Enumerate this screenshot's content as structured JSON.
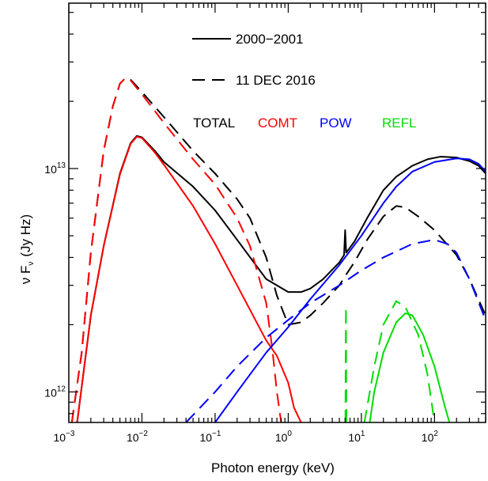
{
  "chart_data": {
    "type": "line",
    "xlabel": "Photon energy (keV)",
    "ylabel_main": "ν F",
    "ylabel_sub": "ν",
    "ylabel_unit": "(Jy Hz)",
    "x_scale": "log",
    "y_scale": "log",
    "xlim": [
      0.001,
      500
    ],
    "ylim": [
      730000000000.0,
      55000000000000.0
    ],
    "x_ticks": [
      {
        "value": 0.001,
        "base": "10",
        "exp": "−3"
      },
      {
        "value": 0.01,
        "base": "10",
        "exp": "−2"
      },
      {
        "value": 0.1,
        "base": "10",
        "exp": "−1"
      },
      {
        "value": 1,
        "base": "10",
        "exp": "0"
      },
      {
        "value": 10,
        "base": "10",
        "exp": "1"
      },
      {
        "value": 100,
        "base": "10",
        "exp": "2"
      }
    ],
    "y_ticks": [
      {
        "value": 1000000000000.0,
        "base": "10",
        "exp": "12"
      },
      {
        "value": 10000000000000.0,
        "base": "10",
        "exp": "13"
      }
    ],
    "grid": false,
    "legend": {
      "placement": "top-center",
      "linestyles": [
        {
          "style": "solid",
          "label": "2000−2001"
        },
        {
          "style": "dashed",
          "label": "11 DEC 2016"
        }
      ],
      "components": [
        {
          "label": "TOTAL",
          "color": "#000000"
        },
        {
          "label": "COMT",
          "color": "#ff0000"
        },
        {
          "label": "POW",
          "color": "#0000ff"
        },
        {
          "label": "REFL",
          "color": "#00dd00"
        }
      ]
    },
    "series": [
      {
        "component": "TOTAL",
        "epoch": "2000−2001",
        "style": "solid",
        "color": "#000000",
        "points": [
          [
            0.0013,
            730000000000.0
          ],
          [
            0.002,
            2200000000000.0
          ],
          [
            0.003,
            4500000000000.0
          ],
          [
            0.005,
            9500000000000.0
          ],
          [
            0.007,
            13000000000000.0
          ],
          [
            0.0085,
            14000000000000.0
          ],
          [
            0.01,
            13800000000000.0
          ],
          [
            0.015,
            12000000000000.0
          ],
          [
            0.02,
            10700000000000.0
          ],
          [
            0.05,
            8300000000000.0
          ],
          [
            0.1,
            6500000000000.0
          ],
          [
            0.2,
            4800000000000.0
          ],
          [
            0.5,
            3200000000000.0
          ],
          [
            1,
            2800000000000.0
          ],
          [
            1.5,
            2800000000000.0
          ],
          [
            2,
            2900000000000.0
          ],
          [
            3,
            3200000000000.0
          ],
          [
            5,
            3800000000000.0
          ],
          [
            5.8,
            4100000000000.0
          ],
          [
            6.0,
            5300000000000.0
          ],
          [
            6.2,
            4200000000000.0
          ],
          [
            8,
            4700000000000.0
          ],
          [
            12,
            6000000000000.0
          ],
          [
            20,
            8000000000000.0
          ],
          [
            30,
            9200000000000.0
          ],
          [
            50,
            10300000000000.0
          ],
          [
            80,
            11000000000000.0
          ],
          [
            120,
            11300000000000.0
          ],
          [
            200,
            11200000000000.0
          ],
          [
            300,
            10800000000000.0
          ],
          [
            400,
            10300000000000.0
          ],
          [
            500,
            9500000000000.0
          ]
        ]
      },
      {
        "component": "TOTAL",
        "epoch": "11 DEC 2016",
        "style": "dashed",
        "color": "#000000",
        "points": [
          [
            0.0011,
            730000000000.0
          ],
          [
            0.0015,
            1500000000000.0
          ],
          [
            0.002,
            4200000000000.0
          ],
          [
            0.003,
            12000000000000.0
          ],
          [
            0.004,
            19000000000000.0
          ],
          [
            0.005,
            24000000000000.0
          ],
          [
            0.006,
            25500000000000.0
          ],
          [
            0.007,
            25000000000000.0
          ],
          [
            0.01,
            22000000000000.0
          ],
          [
            0.02,
            17000000000000.0
          ],
          [
            0.05,
            12000000000000.0
          ],
          [
            0.1,
            9500000000000.0
          ],
          [
            0.2,
            7300000000000.0
          ],
          [
            0.3,
            6000000000000.0
          ],
          [
            0.5,
            4000000000000.0
          ],
          [
            0.7,
            2700000000000.0
          ],
          [
            1,
            2000000000000.0
          ],
          [
            1.5,
            2050000000000.0
          ],
          [
            2,
            2200000000000.0
          ],
          [
            3,
            2500000000000.0
          ],
          [
            5,
            3000000000000.0
          ],
          [
            6,
            3300000000000.0
          ],
          [
            8,
            3800000000000.0
          ],
          [
            12,
            4800000000000.0
          ],
          [
            20,
            6100000000000.0
          ],
          [
            30,
            6800000000000.0
          ],
          [
            40,
            6700000000000.0
          ],
          [
            60,
            6100000000000.0
          ],
          [
            100,
            5300000000000.0
          ],
          [
            200,
            4100000000000.0
          ],
          [
            300,
            3200000000000.0
          ],
          [
            500,
            2200000000000.0
          ]
        ]
      },
      {
        "component": "COMT",
        "epoch": "2000−2001",
        "style": "solid",
        "color": "#ff0000",
        "points": [
          [
            0.0013,
            730000000000.0
          ],
          [
            0.002,
            2200000000000.0
          ],
          [
            0.003,
            4500000000000.0
          ],
          [
            0.005,
            9400000000000.0
          ],
          [
            0.007,
            12900000000000.0
          ],
          [
            0.0085,
            13900000000000.0
          ],
          [
            0.01,
            13700000000000.0
          ],
          [
            0.015,
            11800000000000.0
          ],
          [
            0.02,
            10400000000000.0
          ],
          [
            0.05,
            6800000000000.0
          ],
          [
            0.1,
            4600000000000.0
          ],
          [
            0.2,
            3000000000000.0
          ],
          [
            0.5,
            1700000000000.0
          ],
          [
            0.7,
            1450000000000.0
          ],
          [
            1,
            1100000000000.0
          ],
          [
            1.2,
            850000000000.0
          ],
          [
            1.5,
            730000000000.0
          ]
        ]
      },
      {
        "component": "COMT",
        "epoch": "11 DEC 2016",
        "style": "dashed",
        "color": "#ff0000",
        "points": [
          [
            0.0011,
            730000000000.0
          ],
          [
            0.0015,
            1500000000000.0
          ],
          [
            0.002,
            4200000000000.0
          ],
          [
            0.003,
            12000000000000.0
          ],
          [
            0.004,
            19000000000000.0
          ],
          [
            0.005,
            24000000000000.0
          ],
          [
            0.006,
            25500000000000.0
          ],
          [
            0.007,
            24800000000000.0
          ],
          [
            0.01,
            21500000000000.0
          ],
          [
            0.02,
            16000000000000.0
          ],
          [
            0.05,
            11000000000000.0
          ],
          [
            0.1,
            8500000000000.0
          ],
          [
            0.2,
            6000000000000.0
          ],
          [
            0.3,
            4500000000000.0
          ],
          [
            0.5,
            2500000000000.0
          ],
          [
            0.6,
            1600000000000.0
          ],
          [
            0.7,
            1000000000000.0
          ],
          [
            0.8,
            730000000000.0
          ]
        ]
      },
      {
        "component": "POW",
        "epoch": "2000−2001",
        "style": "solid",
        "color": "#0000ff",
        "points": [
          [
            0.1,
            730000000000.0
          ],
          [
            0.2,
            1000000000000.0
          ],
          [
            0.5,
            1500000000000.0
          ],
          [
            1,
            1950000000000.0
          ],
          [
            2,
            2600000000000.0
          ],
          [
            5,
            3700000000000.0
          ],
          [
            10,
            5000000000000.0
          ],
          [
            20,
            7000000000000.0
          ],
          [
            30,
            8300000000000.0
          ],
          [
            50,
            9700000000000.0
          ],
          [
            100,
            10700000000000.0
          ],
          [
            200,
            11100000000000.0
          ],
          [
            300,
            11000000000000.0
          ],
          [
            400,
            10500000000000.0
          ],
          [
            500,
            9700000000000.0
          ]
        ]
      },
      {
        "component": "POW",
        "epoch": "11 DEC 2016",
        "style": "dashed",
        "color": "#0000ff",
        "points": [
          [
            0.04,
            730000000000.0
          ],
          [
            0.1,
            1000000000000.0
          ],
          [
            0.2,
            1300000000000.0
          ],
          [
            0.5,
            1750000000000.0
          ],
          [
            1,
            2100000000000.0
          ],
          [
            2,
            2500000000000.0
          ],
          [
            5,
            3000000000000.0
          ],
          [
            10,
            3500000000000.0
          ],
          [
            20,
            4000000000000.0
          ],
          [
            50,
            4600000000000.0
          ],
          [
            100,
            4800000000000.0
          ],
          [
            150,
            4600000000000.0
          ],
          [
            200,
            4200000000000.0
          ],
          [
            300,
            3200000000000.0
          ],
          [
            500,
            2100000000000.0
          ]
        ]
      },
      {
        "component": "REFL",
        "epoch": "2000−2001",
        "style": "solid",
        "color": "#00dd00",
        "points": [
          [
            13,
            730000000000.0
          ],
          [
            15,
            1000000000000.0
          ],
          [
            20,
            1500000000000.0
          ],
          [
            30,
            2050000000000.0
          ],
          [
            40,
            2250000000000.0
          ],
          [
            50,
            2200000000000.0
          ],
          [
            70,
            1800000000000.0
          ],
          [
            100,
            1300000000000.0
          ],
          [
            140,
            850000000000.0
          ],
          [
            160,
            730000000000.0
          ]
        ]
      },
      {
        "component": "REFL",
        "epoch": "11 DEC 2016",
        "style": "dashed",
        "color": "#00dd00",
        "points": [
          [
            6.05,
            730000000000.0
          ],
          [
            6.15,
            2400000000000.0
          ],
          [
            6.25,
            730000000000.0
          ]
        ]
      },
      {
        "component": "REFL",
        "epoch": "11 DEC 2016",
        "style": "dashed",
        "color": "#00dd00",
        "points": [
          [
            11,
            730000000000.0
          ],
          [
            15,
            1300000000000.0
          ],
          [
            20,
            2000000000000.0
          ],
          [
            30,
            2550000000000.0
          ],
          [
            40,
            2400000000000.0
          ],
          [
            60,
            1800000000000.0
          ],
          [
            80,
            1200000000000.0
          ],
          [
            100,
            730000000000.0
          ]
        ]
      }
    ]
  }
}
